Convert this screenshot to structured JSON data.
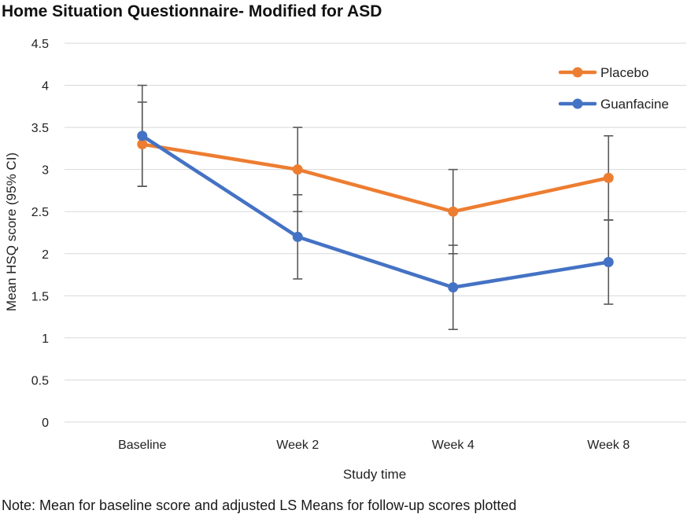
{
  "chart_data": {
    "type": "line",
    "title": "Home Situation Questionnaire- Modified for ASD",
    "xlabel": "Study time",
    "ylabel": "Mean HSQ score (95% CI)",
    "categories": [
      "Baseline",
      "Week 2",
      "Week 4",
      "Week 8"
    ],
    "ylim": [
      0,
      4.5
    ],
    "yticks": [
      0,
      0.5,
      1,
      1.5,
      2,
      2.5,
      3,
      3.5,
      4,
      4.5
    ],
    "grid": true,
    "legend_position": "top-right",
    "note": "Note: Mean for baseline score and adjusted LS Means for follow-up scores plotted",
    "series": [
      {
        "name": "Placebo",
        "color": "#ED7D31",
        "values": [
          3.3,
          3.0,
          2.5,
          2.9
        ],
        "ci_low": [
          2.8,
          2.5,
          2.0,
          2.4
        ],
        "ci_high": [
          3.8,
          3.5,
          3.0,
          3.4
        ]
      },
      {
        "name": "Guanfacine",
        "color": "#4472C4",
        "values": [
          3.4,
          2.2,
          1.6,
          1.9
        ],
        "ci_low": [
          2.8,
          1.7,
          1.1,
          1.4
        ],
        "ci_high": [
          4.0,
          2.7,
          2.1,
          2.4
        ]
      }
    ]
  }
}
